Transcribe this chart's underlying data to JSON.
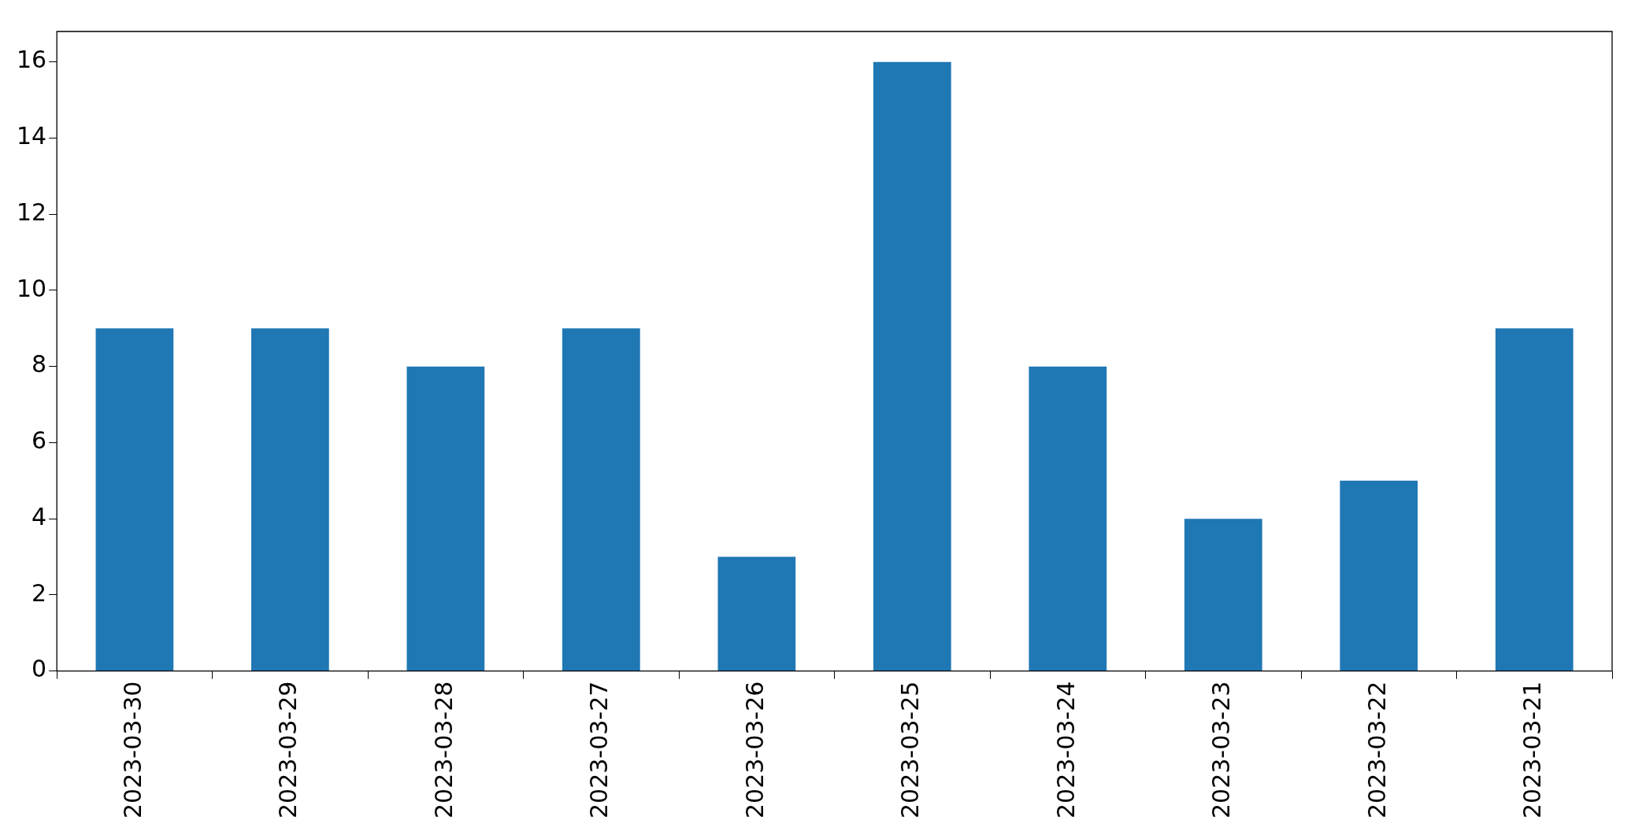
{
  "chart_data": {
    "type": "bar",
    "categories": [
      "2023-03-30",
      "2023-03-29",
      "2023-03-28",
      "2023-03-27",
      "2023-03-26",
      "2023-03-25",
      "2023-03-24",
      "2023-03-23",
      "2023-03-22",
      "2023-03-21"
    ],
    "values": [
      9,
      9,
      8,
      9,
      3,
      16,
      8,
      4,
      5,
      9
    ],
    "color": "#1f77b4",
    "ylim": [
      0,
      16.8
    ],
    "yticks": [
      0,
      2,
      4,
      6,
      8,
      10,
      12,
      14,
      16
    ],
    "grid": false,
    "legend": false
  }
}
